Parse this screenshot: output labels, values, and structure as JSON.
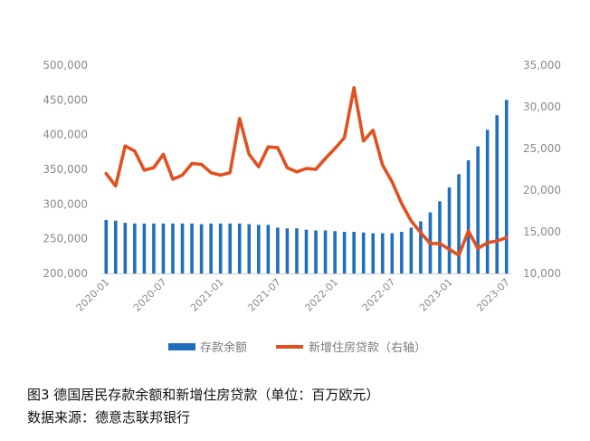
{
  "caption": {
    "title": "图3   德国居民存款余额和新增住房贷款（单位：百万欧元）",
    "source": "数据来源：德意志联邦银行"
  },
  "chart_data": {
    "type": "bar+line",
    "x": [
      "2020-01",
      "2020-02",
      "2020-03",
      "2020-04",
      "2020-05",
      "2020-06",
      "2020-07",
      "2020-08",
      "2020-09",
      "2020-10",
      "2020-11",
      "2020-12",
      "2021-01",
      "2021-02",
      "2021-03",
      "2021-04",
      "2021-05",
      "2021-06",
      "2021-07",
      "2021-08",
      "2021-09",
      "2021-10",
      "2021-11",
      "2021-12",
      "2022-01",
      "2022-02",
      "2022-03",
      "2022-04",
      "2022-05",
      "2022-06",
      "2022-07",
      "2022-08",
      "2022-09",
      "2022-10",
      "2022-11",
      "2022-12",
      "2023-01",
      "2023-02",
      "2023-03",
      "2023-04",
      "2023-05",
      "2023-06",
      "2023-07"
    ],
    "x_tick_labels": [
      "2020-01",
      "2020-07",
      "2021-01",
      "2021-07",
      "2022-01",
      "2022-07",
      "2023-01",
      "2023-07"
    ],
    "series": [
      {
        "name": "存款余额",
        "type": "bar",
        "axis": "left",
        "color": "#1f6fbe",
        "values": [
          277000,
          276000,
          273000,
          272000,
          272000,
          272000,
          272000,
          272000,
          272000,
          272000,
          271000,
          272000,
          272000,
          272000,
          272000,
          271000,
          270000,
          270000,
          266000,
          265000,
          265000,
          263000,
          262000,
          262000,
          261000,
          260000,
          260000,
          259000,
          258000,
          258000,
          258000,
          260000,
          266000,
          275000,
          288000,
          304000,
          324000,
          343000,
          363000,
          383000,
          407000,
          428000,
          450000
        ]
      },
      {
        "name": "新增住房贷款（右轴）",
        "type": "line",
        "axis": "right",
        "color": "#e2501f",
        "values": [
          22000,
          20500,
          25300,
          24700,
          22400,
          22700,
          24300,
          21300,
          21800,
          23200,
          23100,
          22100,
          21800,
          22100,
          28600,
          24300,
          22800,
          25200,
          25100,
          22700,
          22200,
          22600,
          22500,
          23800,
          25000,
          26300,
          32300,
          25900,
          27200,
          23000,
          21000,
          18400,
          16300,
          14900,
          13600,
          13600,
          12900,
          12200,
          15100,
          13000,
          13700,
          13900,
          14300
        ]
      }
    ],
    "y_left": {
      "lim": [
        200000,
        500000
      ],
      "ticks": [
        "200,000",
        "250,000",
        "300,000",
        "350,000",
        "400,000",
        "450,000",
        "500,000"
      ]
    },
    "y_right": {
      "lim": [
        10000,
        35000
      ],
      "ticks": [
        "10,000",
        "15,000",
        "20,000",
        "25,000",
        "30,000",
        "35,000"
      ]
    },
    "legend": {
      "placement": "bottom-center",
      "entries": [
        "存款余额",
        "新增住房贷款（右轴）"
      ]
    },
    "grid": false
  }
}
